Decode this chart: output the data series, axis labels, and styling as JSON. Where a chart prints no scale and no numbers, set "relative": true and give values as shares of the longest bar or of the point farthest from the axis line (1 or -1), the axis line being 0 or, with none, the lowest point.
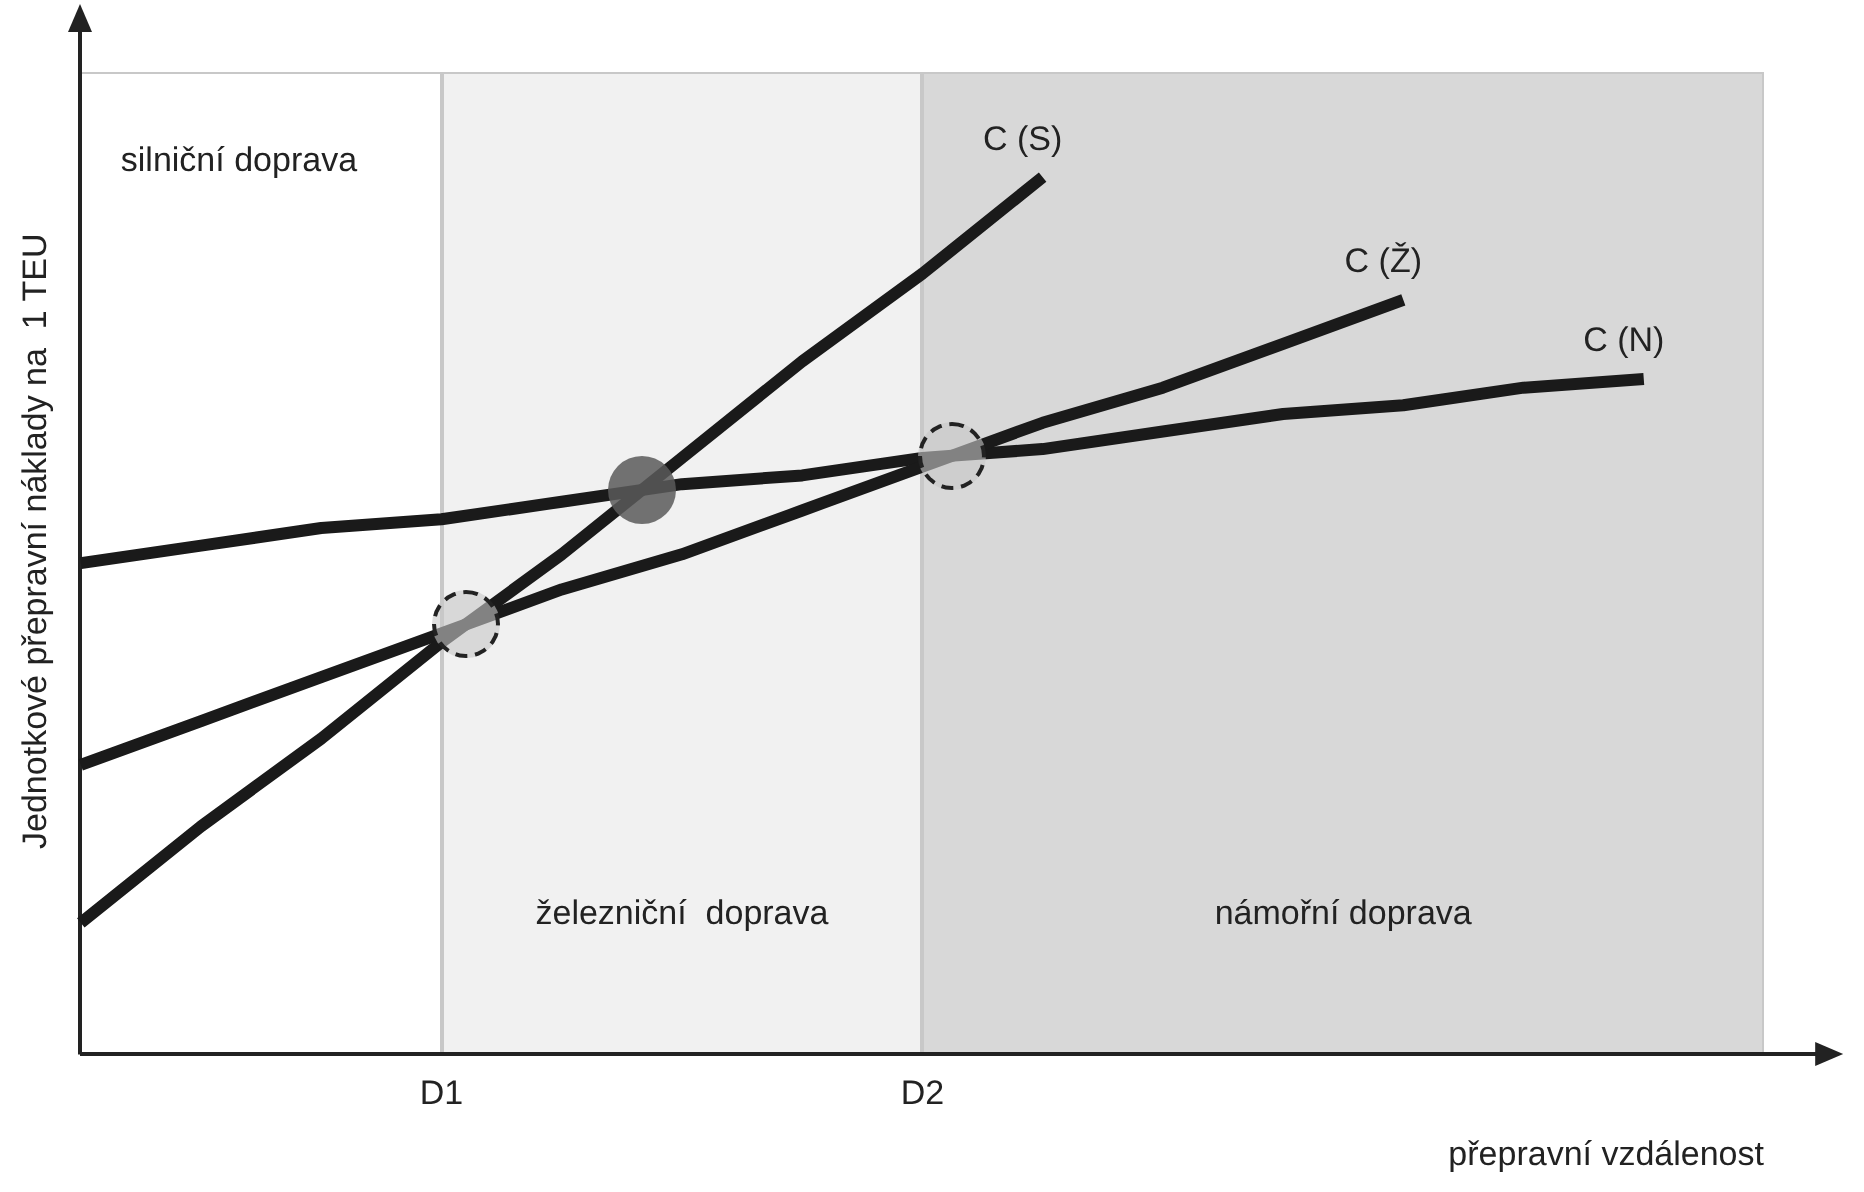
{
  "chart_data": {
    "type": "line",
    "relative": true,
    "ylabel": "Jednotkové přepravní náklady na  1 TEU",
    "xlabel": "přepravní vzdálenost",
    "categories": [
      null,
      null,
      null,
      "D1",
      null,
      null,
      null,
      "D2",
      null,
      null,
      null,
      null,
      null,
      null,
      null
    ],
    "series": [
      {
        "name": "C (S)",
        "color": "#1a1a1a",
        "values": [
          0.15,
          0.26,
          0.36,
          0.47,
          0.57,
          0.68,
          0.79,
          0.89,
          1.0,
          null,
          null,
          null,
          null,
          null,
          null
        ]
      },
      {
        "name": "C (Ž)",
        "color": "#1a1a1a",
        "values": [
          0.33,
          0.38,
          0.43,
          0.48,
          0.53,
          0.57,
          0.62,
          0.67,
          0.72,
          0.76,
          0.81,
          0.86,
          null,
          null,
          null
        ]
      },
      {
        "name": "C (N)",
        "color": "#1a1a1a",
        "values": [
          0.56,
          0.58,
          0.6,
          0.61,
          0.63,
          0.65,
          0.66,
          0.68,
          0.69,
          0.71,
          0.73,
          0.74,
          0.76,
          0.77,
          null
        ]
      }
    ],
    "annotations": [
      "silniční doprava",
      "železniční  doprava",
      "námořní doprava"
    ],
    "grid": false,
    "legend": false,
    "marker": "none",
    "line_style": "solid"
  }
}
